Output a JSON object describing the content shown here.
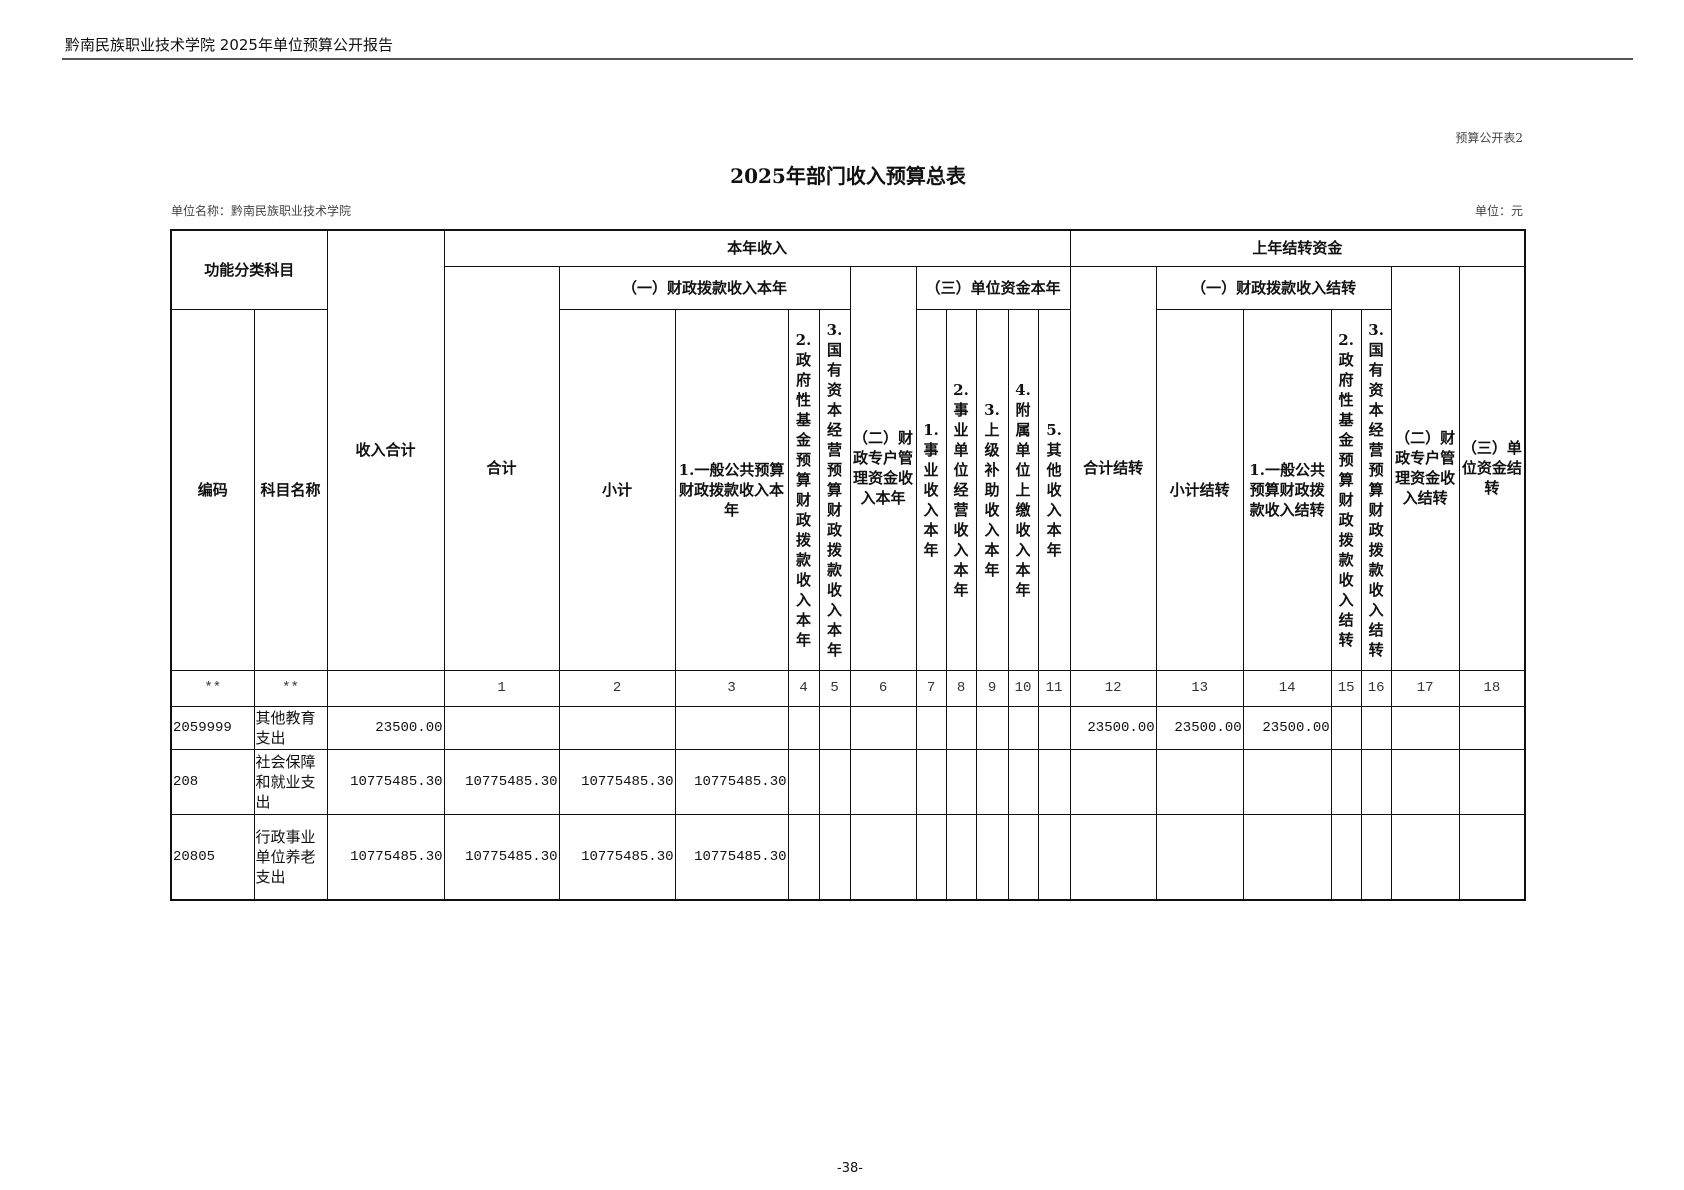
{
  "page_header": "黔南民族职业技术学院 2025年单位预算公开报告",
  "form_number": "预算公开表2",
  "title": "2025年部门收入预算总表",
  "unit_name": "单位名称：黔南民族职业技术学院",
  "unit": "单位：元",
  "headers": {
    "func_category": "功能分类科目",
    "total_income": "收入合计",
    "current_year": "本年收入",
    "prior_carryover": "上年结转资金",
    "cy_total": "合计",
    "cy_fiscal": "（一）财政拨款收入本年",
    "cy_special": "（二）财政专户管理资金收入本年",
    "cy_unit": "（三）单位资金本年",
    "co_total": "合计结转",
    "co_fiscal": "（一）财政拨款收入结转",
    "co_special": "（二）财政专户管理资金收入结转",
    "co_unit": "（三）单位资金结转",
    "code": "编码",
    "subject": "科目名称",
    "cy_subtotal": "小计",
    "cy_general": "1.一般公共预算财政拨款收入本年",
    "cy_gov_fund": "2.政府性基金预算财政拨款收入本年",
    "cy_soe": "3.国有资本经营预算财政拨款收入本年",
    "cy_business": "1.事业收入本年",
    "cy_operating": "2.事业单位经营收入本年",
    "cy_subsidy": "3.上级补助收入本年",
    "cy_affiliated": "4.附属单位上缴收入本年",
    "cy_other": "5.其他收入本年",
    "co_subtotal": "小计结转",
    "co_general": "1.一般公共预算财政拨款收入结转",
    "co_gov_fund": "2.政府性基金预算财政拨款收入结转",
    "co_soe": "3.国有资本经营预算财政拨款收入结转"
  },
  "index_row": [
    "**",
    "**",
    "",
    "1",
    "2",
    "3",
    "4",
    "5",
    "6",
    "7",
    "8",
    "9",
    "10",
    "11",
    "12",
    "13",
    "14",
    "15",
    "16",
    "17",
    "18"
  ],
  "rows": [
    [
      "2059999",
      "其他教育支出",
      "23500.00",
      "",
      "",
      "",
      "",
      "",
      "",
      "",
      "",
      "",
      "",
      "",
      "23500.00",
      "23500.00",
      "23500.00",
      "",
      "",
      "",
      ""
    ],
    [
      "208",
      "社会保障和就业支出",
      "10775485.30",
      "10775485.30",
      "10775485.30",
      "10775485.30",
      "",
      "",
      "",
      "",
      "",
      "",
      "",
      "",
      "",
      "",
      "",
      "",
      "",
      "",
      ""
    ],
    [
      "20805",
      "行政事业单位养老支出",
      "10775485.30",
      "10775485.30",
      "10775485.30",
      "10775485.30",
      "",
      "",
      "",
      "",
      "",
      "",
      "",
      "",
      "",
      "",
      "",
      "",
      "",
      "",
      ""
    ]
  ],
  "page_number": "-38-"
}
